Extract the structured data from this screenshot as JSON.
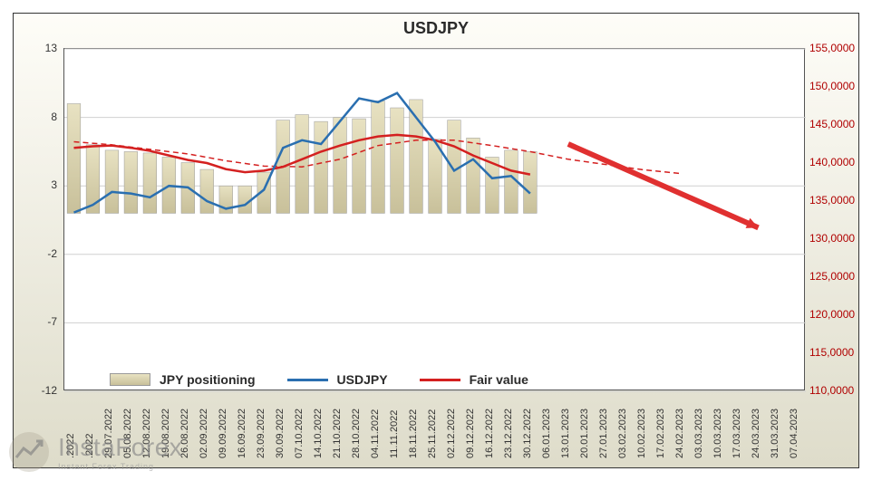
{
  "chart": {
    "title": "USDJPY",
    "title_fontsize": 18,
    "background_gradient": [
      "#fefdf8",
      "#dedcca"
    ],
    "plot_background": "#ffffff",
    "grid_color": "#d0d0d0",
    "left_axis": {
      "ylim": [
        -12,
        13
      ],
      "ticks": [
        -12,
        -7,
        -2,
        3,
        8,
        13
      ],
      "color": "#333333",
      "fontsize": 12
    },
    "right_axis": {
      "ylim": [
        110.0,
        155.0
      ],
      "ticks": [
        "110,0000",
        "115,0000",
        "120,0000",
        "125,0000",
        "130,0000",
        "135,0000",
        "140,0000",
        "145,0000",
        "150,0000",
        "155,0000"
      ],
      "color": "#b00000",
      "fontsize": 12
    },
    "x_axis": {
      "labels": [
        ".2022",
        ".2022",
        "29.07.2022",
        "05.08.2022",
        "12.08.2022",
        "19.08.2022",
        "26.08.2022",
        "02.09.2022",
        "09.09.2022",
        "16.09.2022",
        "23.09.2022",
        "30.09.2022",
        "07.10.2022",
        "14.10.2022",
        "21.10.2022",
        "28.10.2022",
        "04.11.2022",
        "11.11.2022",
        "18.11.2022",
        "25.11.2022",
        "02.12.2022",
        "09.12.2022",
        "16.12.2022",
        "23.12.2022",
        "30.12.2022",
        "06.01.2023",
        "13.01.2023",
        "20.01.2023",
        "27.01.2023",
        "03.02.2023",
        "10.02.2023",
        "17.02.2023",
        "24.02.2023",
        "03.03.2023",
        "10.03.2023",
        "17.03.2023",
        "24.03.2023",
        "31.03.2023",
        "07.04.2023"
      ],
      "fontsize": 11
    },
    "bars": {
      "name": "JPY positioning",
      "color_gradient": [
        "#e8e2c2",
        "#c8c09a"
      ],
      "border_color": "#999999",
      "values": [
        9.0,
        6.0,
        5.6,
        5.5,
        5.4,
        5.1,
        4.7,
        4.2,
        3.0,
        3.0,
        4.0,
        7.8,
        8.2,
        7.7,
        8.0,
        7.9,
        9.2,
        8.7,
        9.3,
        6.4,
        7.8,
        6.5,
        5.1,
        5.6,
        5.5
      ],
      "width": 0.7
    },
    "line_usdjpy": {
      "name": "USDJPY",
      "color": "#2a6fb0",
      "width": 2.5,
      "points": [
        [
          0,
          133.5
        ],
        [
          1,
          134.5
        ],
        [
          2,
          136.2
        ],
        [
          3,
          136.0
        ],
        [
          4,
          135.5
        ],
        [
          5,
          137.0
        ],
        [
          6,
          136.8
        ],
        [
          7,
          135.0
        ],
        [
          8,
          134.0
        ],
        [
          9,
          134.5
        ],
        [
          10,
          136.5
        ],
        [
          11,
          142.0
        ],
        [
          12,
          143.0
        ],
        [
          13,
          142.5
        ],
        [
          14,
          145.5
        ],
        [
          15,
          148.5
        ],
        [
          16,
          148.0
        ],
        [
          17,
          149.2
        ],
        [
          18,
          146.0
        ],
        [
          19,
          142.8
        ],
        [
          20,
          139.0
        ],
        [
          21,
          140.5
        ],
        [
          22,
          138.0
        ],
        [
          23,
          138.3
        ],
        [
          24,
          136.0
        ]
      ]
    },
    "line_fairvalue": {
      "name": "Fair value",
      "color": "#d42020",
      "width": 2.5,
      "points": [
        [
          0,
          142.0
        ],
        [
          1,
          142.2
        ],
        [
          2,
          142.3
        ],
        [
          3,
          142.0
        ],
        [
          4,
          141.6
        ],
        [
          5,
          141.0
        ],
        [
          6,
          140.4
        ],
        [
          7,
          140.0
        ],
        [
          8,
          139.2
        ],
        [
          9,
          138.8
        ],
        [
          10,
          139.0
        ],
        [
          11,
          139.5
        ],
        [
          12,
          140.5
        ],
        [
          13,
          141.5
        ],
        [
          14,
          142.3
        ],
        [
          15,
          143.0
        ],
        [
          16,
          143.5
        ],
        [
          17,
          143.7
        ],
        [
          18,
          143.5
        ],
        [
          19,
          143.0
        ],
        [
          20,
          142.2
        ],
        [
          21,
          141.0
        ],
        [
          22,
          140.0
        ],
        [
          23,
          139.0
        ],
        [
          24,
          138.5
        ]
      ]
    },
    "line_dashed": {
      "color": "#d42020",
      "width": 1.5,
      "dash": "6,4",
      "points": [
        [
          0,
          142.8
        ],
        [
          2,
          142.4
        ],
        [
          4,
          141.8
        ],
        [
          6,
          141.2
        ],
        [
          8,
          140.3
        ],
        [
          10,
          139.6
        ],
        [
          12,
          139.5
        ],
        [
          14,
          140.5
        ],
        [
          16,
          142.3
        ],
        [
          18,
          143.0
        ],
        [
          20,
          143.0
        ],
        [
          22,
          142.3
        ],
        [
          24,
          141.5
        ],
        [
          26,
          140.5
        ],
        [
          28,
          139.8
        ],
        [
          30,
          139.1
        ],
        [
          32,
          138.6
        ]
      ]
    },
    "arrow": {
      "color": "#e03030",
      "width": 6,
      "start": [
        26,
        142.5
      ],
      "end": [
        36,
        131.5
      ],
      "head_size": 14
    },
    "legend": {
      "items": [
        {
          "type": "bar",
          "label": "JPY positioning"
        },
        {
          "type": "line",
          "color": "#2a6fb0",
          "label": "USDJPY"
        },
        {
          "type": "line",
          "color": "#d42020",
          "label": "Fair value"
        }
      ],
      "fontsize": 14
    }
  },
  "watermark": {
    "brand": "Insta",
    "brand2": "Forex",
    "subtitle": "Instant Forex Trading"
  }
}
